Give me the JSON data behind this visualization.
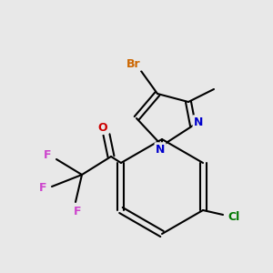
{
  "background_color": "#e8e8e8",
  "bond_color": "#000000",
  "bond_width": 1.5,
  "figsize": [
    3.0,
    3.0
  ],
  "dpi": 100,
  "colors": {
    "N": "#0000cc",
    "O": "#cc0000",
    "Br": "#cc6600",
    "F": "#cc44cc",
    "Cl": "#007700",
    "C": "#000000"
  }
}
